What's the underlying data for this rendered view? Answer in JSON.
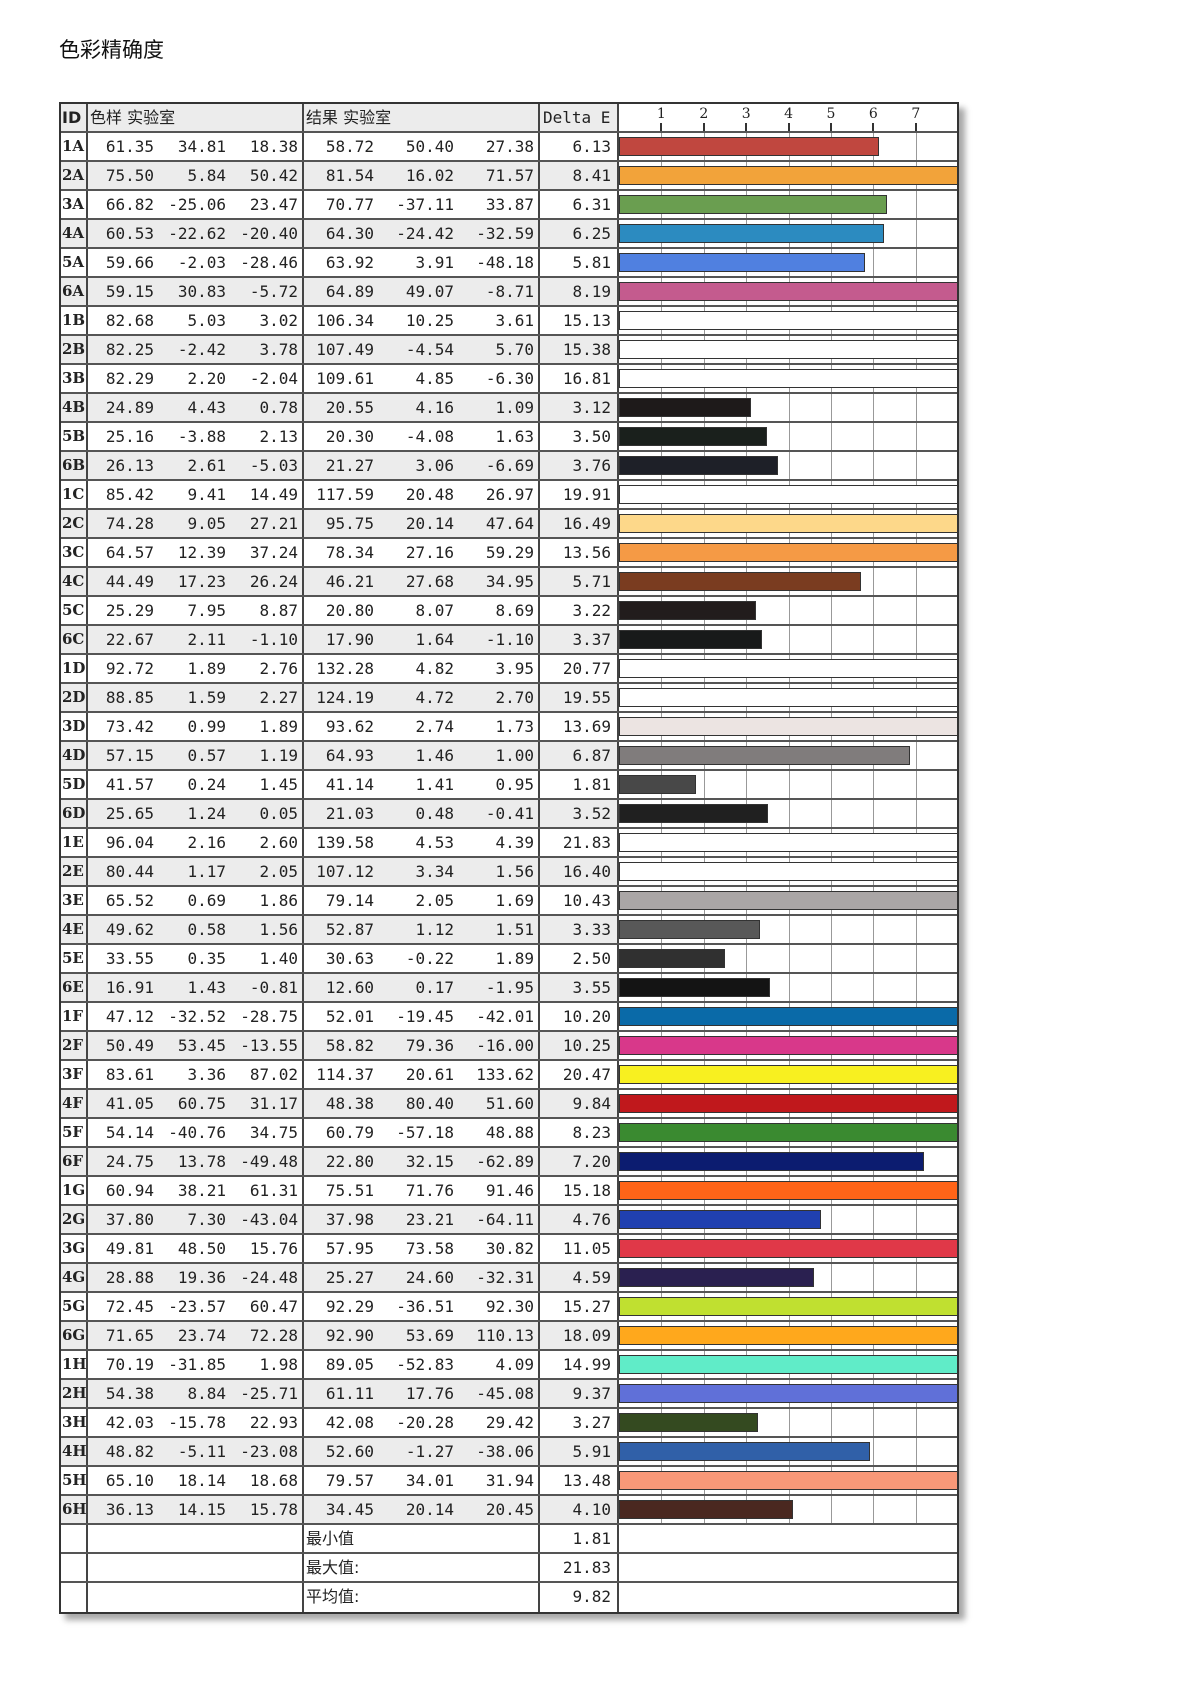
{
  "title": "色彩精确度",
  "chart_data": {
    "type": "bar",
    "orientation": "horizontal",
    "headers": {
      "id": "ID",
      "sample": "色样 实验室",
      "result": "结果 实验室",
      "delta": "Delta E"
    },
    "xticks": [
      1,
      2,
      3,
      4,
      5,
      6,
      7
    ],
    "xlim": [
      0,
      7.97
    ],
    "grid": true,
    "rows": [
      {
        "id": "1A",
        "s": [
          "61.35",
          "34.81",
          "18.38"
        ],
        "r": [
          "58.72",
          "50.40",
          "27.38"
        ],
        "d": 6.13,
        "color": "#c0473f"
      },
      {
        "id": "2A",
        "s": [
          "75.50",
          "5.84",
          "50.42"
        ],
        "r": [
          "81.54",
          "16.02",
          "71.57"
        ],
        "d": 8.41,
        "color": "#f2a33a"
      },
      {
        "id": "3A",
        "s": [
          "66.82",
          "-25.06",
          "23.47"
        ],
        "r": [
          "70.77",
          "-37.11",
          "33.87"
        ],
        "d": 6.31,
        "color": "#6a9e50"
      },
      {
        "id": "4A",
        "s": [
          "60.53",
          "-22.62",
          "-20.40"
        ],
        "r": [
          "64.30",
          "-24.42",
          "-32.59"
        ],
        "d": 6.25,
        "color": "#2c8bc0"
      },
      {
        "id": "5A",
        "s": [
          "59.66",
          "-2.03",
          "-28.46"
        ],
        "r": [
          "63.92",
          "3.91",
          "-48.18"
        ],
        "d": 5.81,
        "color": "#5080e0"
      },
      {
        "id": "6A",
        "s": [
          "59.15",
          "30.83",
          "-5.72"
        ],
        "r": [
          "64.89",
          "49.07",
          "-8.71"
        ],
        "d": 8.19,
        "color": "#c45b8e"
      },
      {
        "id": "1B",
        "s": [
          "82.68",
          "5.03",
          "3.02"
        ],
        "r": [
          "106.34",
          "10.25",
          "3.61"
        ],
        "d": 15.13,
        "color": "#ffffff"
      },
      {
        "id": "2B",
        "s": [
          "82.25",
          "-2.42",
          "3.78"
        ],
        "r": [
          "107.49",
          "-4.54",
          "5.70"
        ],
        "d": 15.38,
        "color": "#ffffff"
      },
      {
        "id": "3B",
        "s": [
          "82.29",
          "2.20",
          "-2.04"
        ],
        "r": [
          "109.61",
          "4.85",
          "-6.30"
        ],
        "d": 16.81,
        "color": "#ffffff"
      },
      {
        "id": "4B",
        "s": [
          "24.89",
          "4.43",
          "0.78"
        ],
        "r": [
          "20.55",
          "4.16",
          "1.09"
        ],
        "d": 3.12,
        "color": "#1e1a1a"
      },
      {
        "id": "5B",
        "s": [
          "25.16",
          "-3.88",
          "2.13"
        ],
        "r": [
          "20.30",
          "-4.08",
          "1.63"
        ],
        "d": 3.5,
        "color": "#1a201c"
      },
      {
        "id": "6B",
        "s": [
          "26.13",
          "2.61",
          "-5.03"
        ],
        "r": [
          "21.27",
          "3.06",
          "-6.69"
        ],
        "d": 3.76,
        "color": "#1e2028"
      },
      {
        "id": "1C",
        "s": [
          "85.42",
          "9.41",
          "14.49"
        ],
        "r": [
          "117.59",
          "20.48",
          "26.97"
        ],
        "d": 19.91,
        "color": "#ffffff"
      },
      {
        "id": "2C",
        "s": [
          "74.28",
          "9.05",
          "27.21"
        ],
        "r": [
          "95.75",
          "20.14",
          "47.64"
        ],
        "d": 16.49,
        "color": "#fdd88a"
      },
      {
        "id": "3C",
        "s": [
          "64.57",
          "12.39",
          "37.24"
        ],
        "r": [
          "78.34",
          "27.16",
          "59.29"
        ],
        "d": 13.56,
        "color": "#f59a45"
      },
      {
        "id": "4C",
        "s": [
          "44.49",
          "17.23",
          "26.24"
        ],
        "r": [
          "46.21",
          "27.68",
          "34.95"
        ],
        "d": 5.71,
        "color": "#7a3c20"
      },
      {
        "id": "5C",
        "s": [
          "25.29",
          "7.95",
          "8.87"
        ],
        "r": [
          "20.80",
          "8.07",
          "8.69"
        ],
        "d": 3.22,
        "color": "#221c1c"
      },
      {
        "id": "6C",
        "s": [
          "22.67",
          "2.11",
          "-1.10"
        ],
        "r": [
          "17.90",
          "1.64",
          "-1.10"
        ],
        "d": 3.37,
        "color": "#181a1a"
      },
      {
        "id": "1D",
        "s": [
          "92.72",
          "1.89",
          "2.76"
        ],
        "r": [
          "132.28",
          "4.82",
          "3.95"
        ],
        "d": 20.77,
        "color": "#ffffff"
      },
      {
        "id": "2D",
        "s": [
          "88.85",
          "1.59",
          "2.27"
        ],
        "r": [
          "124.19",
          "4.72",
          "2.70"
        ],
        "d": 19.55,
        "color": "#ffffff"
      },
      {
        "id": "3D",
        "s": [
          "73.42",
          "0.99",
          "1.89"
        ],
        "r": [
          "93.62",
          "2.74",
          "1.73"
        ],
        "d": 13.69,
        "color": "#ece4e2"
      },
      {
        "id": "4D",
        "s": [
          "57.15",
          "0.57",
          "1.19"
        ],
        "r": [
          "64.93",
          "1.46",
          "1.00"
        ],
        "d": 6.87,
        "color": "#807c7c"
      },
      {
        "id": "5D",
        "s": [
          "41.57",
          "0.24",
          "1.45"
        ],
        "r": [
          "41.14",
          "1.41",
          "0.95"
        ],
        "d": 1.81,
        "color": "#484848"
      },
      {
        "id": "6D",
        "s": [
          "25.65",
          "1.24",
          "0.05"
        ],
        "r": [
          "21.03",
          "0.48",
          "-0.41"
        ],
        "d": 3.52,
        "color": "#202020"
      },
      {
        "id": "1E",
        "s": [
          "96.04",
          "2.16",
          "2.60"
        ],
        "r": [
          "139.58",
          "4.53",
          "4.39"
        ],
        "d": 21.83,
        "color": "#ffffff"
      },
      {
        "id": "2E",
        "s": [
          "80.44",
          "1.17",
          "2.05"
        ],
        "r": [
          "107.12",
          "3.34",
          "1.56"
        ],
        "d": 16.4,
        "color": "#ffffff"
      },
      {
        "id": "3E",
        "s": [
          "65.52",
          "0.69",
          "1.86"
        ],
        "r": [
          "79.14",
          "2.05",
          "1.69"
        ],
        "d": 10.43,
        "color": "#aaa6a6"
      },
      {
        "id": "4E",
        "s": [
          "49.62",
          "0.58",
          "1.56"
        ],
        "r": [
          "52.87",
          "1.12",
          "1.51"
        ],
        "d": 3.33,
        "color": "#585858"
      },
      {
        "id": "5E",
        "s": [
          "33.55",
          "0.35",
          "1.40"
        ],
        "r": [
          "30.63",
          "-0.22",
          "1.89"
        ],
        "d": 2.5,
        "color": "#303030"
      },
      {
        "id": "6E",
        "s": [
          "16.91",
          "1.43",
          "-0.81"
        ],
        "r": [
          "12.60",
          "0.17",
          "-1.95"
        ],
        "d": 3.55,
        "color": "#141414"
      },
      {
        "id": "1F",
        "s": [
          "47.12",
          "-32.52",
          "-28.75"
        ],
        "r": [
          "52.01",
          "-19.45",
          "-42.01"
        ],
        "d": 10.2,
        "color": "#0a6aa8"
      },
      {
        "id": "2F",
        "s": [
          "50.49",
          "53.45",
          "-13.55"
        ],
        "r": [
          "58.82",
          "79.36",
          "-16.00"
        ],
        "d": 10.25,
        "color": "#d8388a"
      },
      {
        "id": "3F",
        "s": [
          "83.61",
          "3.36",
          "87.02"
        ],
        "r": [
          "114.37",
          "20.61",
          "133.62"
        ],
        "d": 20.47,
        "color": "#f8f020"
      },
      {
        "id": "4F",
        "s": [
          "41.05",
          "60.75",
          "31.17"
        ],
        "r": [
          "48.38",
          "80.40",
          "51.60"
        ],
        "d": 9.84,
        "color": "#c0181c"
      },
      {
        "id": "5F",
        "s": [
          "54.14",
          "-40.76",
          "34.75"
        ],
        "r": [
          "60.79",
          "-57.18",
          "48.88"
        ],
        "d": 8.23,
        "color": "#3a8a30"
      },
      {
        "id": "6F",
        "s": [
          "24.75",
          "13.78",
          "-49.48"
        ],
        "r": [
          "22.80",
          "32.15",
          "-62.89"
        ],
        "d": 7.2,
        "color": "#0c1c70"
      },
      {
        "id": "1G",
        "s": [
          "60.94",
          "38.21",
          "61.31"
        ],
        "r": [
          "75.51",
          "71.76",
          "91.46"
        ],
        "d": 15.18,
        "color": "#ff6418"
      },
      {
        "id": "2G",
        "s": [
          "37.80",
          "7.30",
          "-43.04"
        ],
        "r": [
          "37.98",
          "23.21",
          "-64.11"
        ],
        "d": 4.76,
        "color": "#2040b0"
      },
      {
        "id": "3G",
        "s": [
          "49.81",
          "48.50",
          "15.76"
        ],
        "r": [
          "57.95",
          "73.58",
          "30.82"
        ],
        "d": 11.05,
        "color": "#e03848"
      },
      {
        "id": "4G",
        "s": [
          "28.88",
          "19.36",
          "-24.48"
        ],
        "r": [
          "25.27",
          "24.60",
          "-32.31"
        ],
        "d": 4.59,
        "color": "#2a2050"
      },
      {
        "id": "5G",
        "s": [
          "72.45",
          "-23.57",
          "60.47"
        ],
        "r": [
          "92.29",
          "-36.51",
          "92.30"
        ],
        "d": 15.27,
        "color": "#c0e030"
      },
      {
        "id": "6G",
        "s": [
          "71.65",
          "23.74",
          "72.28"
        ],
        "r": [
          "92.90",
          "53.69",
          "110.13"
        ],
        "d": 18.09,
        "color": "#ffa81c"
      },
      {
        "id": "1H",
        "s": [
          "70.19",
          "-31.85",
          "1.98"
        ],
        "r": [
          "89.05",
          "-52.83",
          "4.09"
        ],
        "d": 14.99,
        "color": "#60ecc8"
      },
      {
        "id": "2H",
        "s": [
          "54.38",
          "8.84",
          "-25.71"
        ],
        "r": [
          "61.11",
          "17.76",
          "-45.08"
        ],
        "d": 9.37,
        "color": "#6070d8"
      },
      {
        "id": "3H",
        "s": [
          "42.03",
          "-15.78",
          "22.93"
        ],
        "r": [
          "42.08",
          "-20.28",
          "29.42"
        ],
        "d": 3.27,
        "color": "#344a20"
      },
      {
        "id": "4H",
        "s": [
          "48.82",
          "-5.11",
          "-23.08"
        ],
        "r": [
          "52.60",
          "-1.27",
          "-38.06"
        ],
        "d": 5.91,
        "color": "#3060a8"
      },
      {
        "id": "5H",
        "s": [
          "65.10",
          "18.14",
          "18.68"
        ],
        "r": [
          "79.57",
          "34.01",
          "31.94"
        ],
        "d": 13.48,
        "color": "#f89878"
      },
      {
        "id": "6H",
        "s": [
          "36.13",
          "14.15",
          "15.78"
        ],
        "r": [
          "34.45",
          "20.14",
          "20.45"
        ],
        "d": 4.1,
        "color": "#4a2820"
      }
    ],
    "summary": [
      {
        "label": "最小值",
        "value": "1.81"
      },
      {
        "label": "最大值:",
        "value": "21.83"
      },
      {
        "label": "平均值:",
        "value": "9.82"
      }
    ]
  }
}
